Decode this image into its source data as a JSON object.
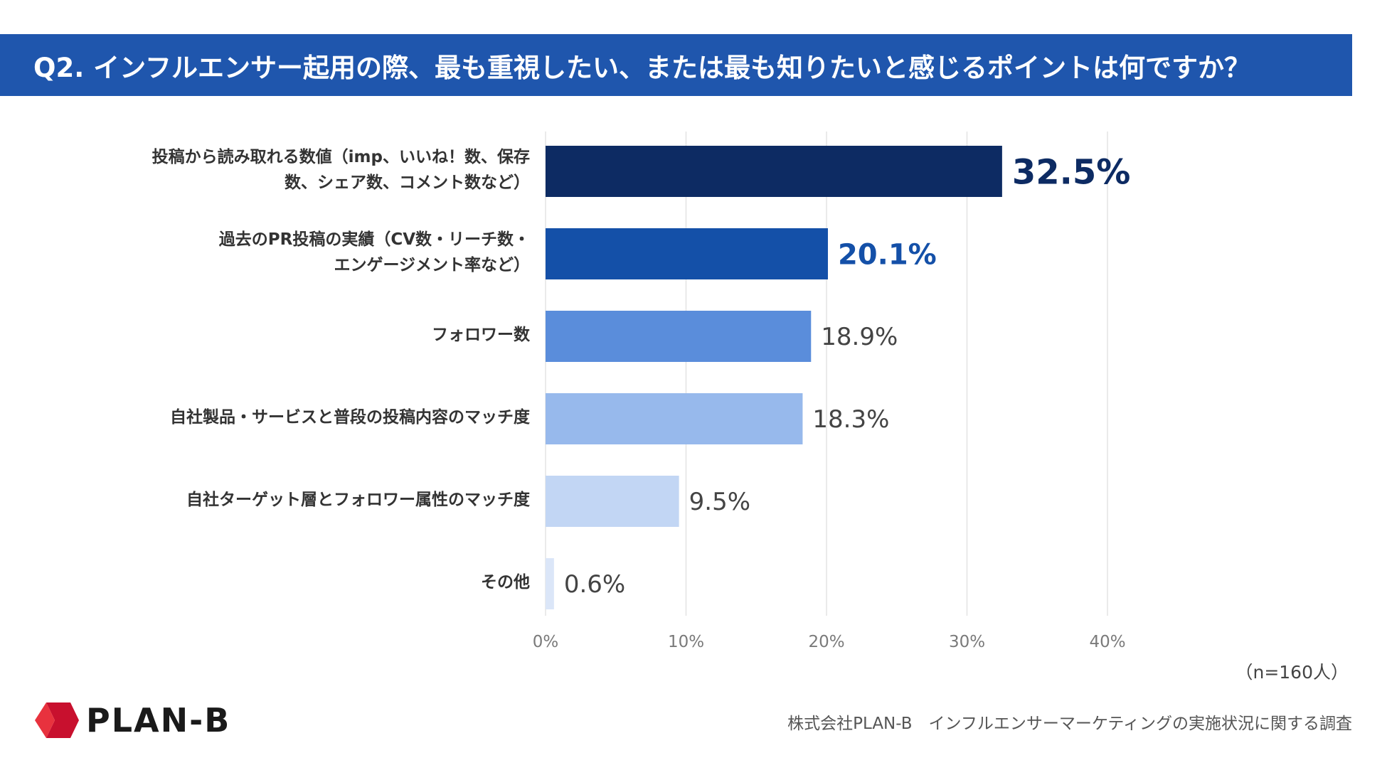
{
  "title": "Q2. インフルエンサー起用の際、最も重視したい、または最も知りたいと感じるポイントは何ですか？",
  "chart_data": {
    "type": "bar",
    "orientation": "horizontal",
    "categories": [
      [
        "投稿から読み取れる数値（imp、いいね！数、保存",
        "数、シェア数、コメント数など）"
      ],
      [
        "過去のPR投稿の実績（CV数・リーチ数・",
        "エンゲージメント率など）"
      ],
      [
        "フォロワー数"
      ],
      [
        "自社製品・サービスと普段の投稿内容のマッチ度"
      ],
      [
        "自社ターゲット層とフォロワー属性のマッチ度"
      ],
      [
        "その他"
      ]
    ],
    "values": [
      32.5,
      20.1,
      18.9,
      18.3,
      9.5,
      0.6
    ],
    "value_labels": [
      "32.5%",
      "20.1%",
      "18.9%",
      "18.3%",
      "9.5%",
      "0.6%"
    ],
    "bar_colors": [
      "#0d2b63",
      "#1450a8",
      "#5a8ddb",
      "#97b9ec",
      "#c2d6f4",
      "#dbe6f8"
    ],
    "label_colors": [
      "#0d2b63",
      "#1450a8",
      "#444444",
      "#444444",
      "#444444",
      "#444444"
    ],
    "xlim": [
      0,
      40
    ],
    "ticks": [
      0,
      10,
      20,
      30,
      40
    ],
    "tick_labels": [
      "0%",
      "10%",
      "20%",
      "30%",
      "40%"
    ],
    "grid": true
  },
  "sample_note": "（n=160人）",
  "footer": "株式会社PLAN-B　インフルエンサーマーケティングの実施状況に関する調査",
  "logo_text": "PLAN-B"
}
